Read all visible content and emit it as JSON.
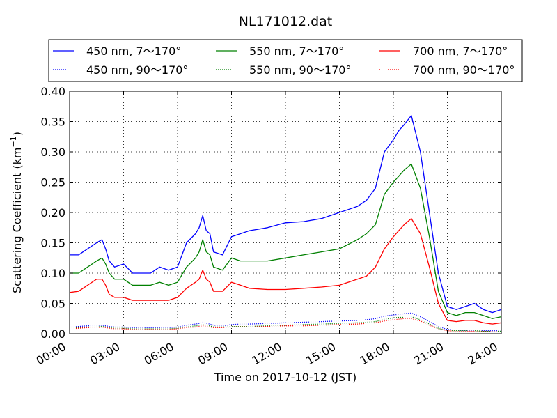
{
  "chart_data": {
    "type": "line",
    "title": "NL171012.dat",
    "xlabel": "Time on 2017-10-12 (JST)",
    "ylabel": "Scattering Coefficient (km",
    "ylabel_sup": "−1",
    "ylabel_close": ")",
    "xlim": [
      0,
      24
    ],
    "ylim": [
      0,
      0.4
    ],
    "x_ticks": [
      0,
      3,
      6,
      9,
      12,
      15,
      18,
      21,
      24
    ],
    "x_tick_labels": [
      "00:00",
      "03:00",
      "06:00",
      "09:00",
      "12:00",
      "15:00",
      "18:00",
      "21:00",
      "24:00"
    ],
    "y_ticks": [
      0,
      0.05,
      0.1,
      0.15,
      0.2,
      0.25,
      0.3,
      0.35,
      0.4
    ],
    "y_tick_labels": [
      "0.00",
      "0.05",
      "0.10",
      "0.15",
      "0.20",
      "0.25",
      "0.30",
      "0.35",
      "0.40"
    ],
    "grid": true,
    "legend_position": "top",
    "x": [
      0,
      0.5,
      1,
      1.5,
      1.8,
      2,
      2.2,
      2.5,
      3,
      3.5,
      4,
      4.5,
      5,
      5.5,
      6,
      6.5,
      7,
      7.2,
      7.4,
      7.6,
      7.8,
      8,
      8.5,
      9,
      9.5,
      10,
      11,
      12,
      13,
      14,
      15,
      16,
      16.5,
      17,
      17.5,
      18,
      18.3,
      18.6,
      19,
      19.5,
      20,
      20.5,
      21,
      21.5,
      22,
      22.5,
      23,
      23.5,
      24
    ],
    "series": [
      {
        "name": "450 nm, 7～170°",
        "color": "#0000ff",
        "style": "solid",
        "values": [
          0.13,
          0.13,
          0.14,
          0.15,
          0.155,
          0.14,
          0.12,
          0.11,
          0.115,
          0.1,
          0.1,
          0.1,
          0.11,
          0.105,
          0.11,
          0.15,
          0.165,
          0.175,
          0.195,
          0.17,
          0.165,
          0.135,
          0.13,
          0.16,
          0.165,
          0.17,
          0.175,
          0.183,
          0.185,
          0.19,
          0.2,
          0.21,
          0.22,
          0.24,
          0.3,
          0.32,
          0.335,
          0.345,
          0.36,
          0.3,
          0.2,
          0.1,
          0.045,
          0.04,
          0.045,
          0.05,
          0.04,
          0.035,
          0.04
        ]
      },
      {
        "name": "450 nm, 90～170°",
        "color": "#0000ff",
        "style": "dotted",
        "values": [
          0.011,
          0.012,
          0.013,
          0.014,
          0.014,
          0.013,
          0.012,
          0.011,
          0.011,
          0.01,
          0.01,
          0.01,
          0.01,
          0.01,
          0.011,
          0.014,
          0.016,
          0.017,
          0.019,
          0.017,
          0.016,
          0.014,
          0.013,
          0.015,
          0.016,
          0.016,
          0.017,
          0.018,
          0.019,
          0.02,
          0.021,
          0.022,
          0.023,
          0.025,
          0.029,
          0.031,
          0.032,
          0.033,
          0.034,
          0.028,
          0.02,
          0.012,
          0.007,
          0.006,
          0.006,
          0.006,
          0.005,
          0.005,
          0.005
        ]
      },
      {
        "name": "550 nm, 7～170°",
        "color": "#008000",
        "style": "solid",
        "values": [
          0.1,
          0.1,
          0.11,
          0.12,
          0.125,
          0.115,
          0.1,
          0.09,
          0.09,
          0.08,
          0.08,
          0.08,
          0.085,
          0.08,
          0.085,
          0.11,
          0.125,
          0.135,
          0.155,
          0.135,
          0.13,
          0.11,
          0.105,
          0.125,
          0.12,
          0.12,
          0.12,
          0.125,
          0.13,
          0.135,
          0.14,
          0.155,
          0.165,
          0.18,
          0.23,
          0.25,
          0.26,
          0.27,
          0.28,
          0.24,
          0.16,
          0.07,
          0.035,
          0.03,
          0.035,
          0.035,
          0.03,
          0.025,
          0.028
        ]
      },
      {
        "name": "550 nm, 90～170°",
        "color": "#008000",
        "style": "dotted",
        "values": [
          0.009,
          0.01,
          0.011,
          0.011,
          0.012,
          0.011,
          0.01,
          0.009,
          0.009,
          0.008,
          0.008,
          0.008,
          0.008,
          0.008,
          0.009,
          0.011,
          0.013,
          0.014,
          0.015,
          0.014,
          0.013,
          0.011,
          0.011,
          0.012,
          0.012,
          0.012,
          0.013,
          0.014,
          0.015,
          0.016,
          0.017,
          0.018,
          0.019,
          0.02,
          0.024,
          0.026,
          0.027,
          0.027,
          0.028,
          0.023,
          0.016,
          0.009,
          0.005,
          0.005,
          0.005,
          0.005,
          0.004,
          0.004,
          0.004
        ]
      },
      {
        "name": "700 nm, 7～170°",
        "color": "#ff0000",
        "style": "solid",
        "values": [
          0.068,
          0.07,
          0.08,
          0.09,
          0.09,
          0.08,
          0.065,
          0.06,
          0.06,
          0.055,
          0.055,
          0.055,
          0.055,
          0.055,
          0.06,
          0.075,
          0.085,
          0.09,
          0.105,
          0.09,
          0.085,
          0.07,
          0.07,
          0.085,
          0.08,
          0.075,
          0.073,
          0.073,
          0.075,
          0.077,
          0.08,
          0.09,
          0.095,
          0.11,
          0.14,
          0.16,
          0.17,
          0.18,
          0.19,
          0.165,
          0.11,
          0.05,
          0.022,
          0.02,
          0.022,
          0.022,
          0.018,
          0.016,
          0.018
        ]
      },
      {
        "name": "700 nm, 90～170°",
        "color": "#ff0000",
        "style": "dotted",
        "values": [
          0.008,
          0.009,
          0.01,
          0.01,
          0.011,
          0.01,
          0.009,
          0.008,
          0.008,
          0.007,
          0.007,
          0.007,
          0.007,
          0.007,
          0.008,
          0.01,
          0.011,
          0.012,
          0.013,
          0.012,
          0.011,
          0.01,
          0.01,
          0.011,
          0.011,
          0.011,
          0.012,
          0.013,
          0.013,
          0.014,
          0.015,
          0.016,
          0.017,
          0.018,
          0.021,
          0.023,
          0.024,
          0.025,
          0.025,
          0.021,
          0.014,
          0.008,
          0.005,
          0.004,
          0.004,
          0.004,
          0.004,
          0.003,
          0.003
        ]
      }
    ]
  }
}
